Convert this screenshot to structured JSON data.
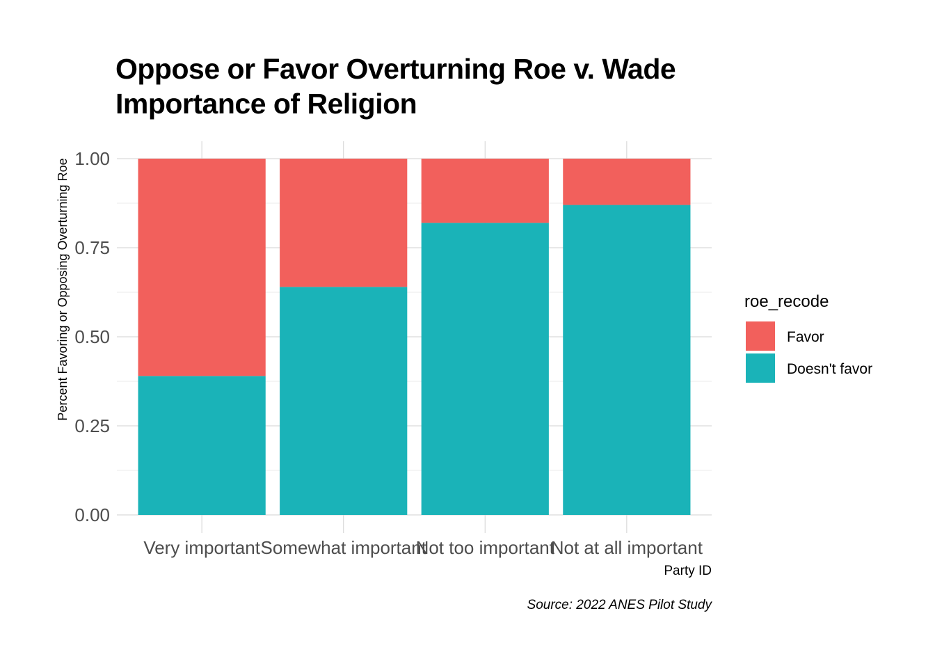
{
  "chart_data": {
    "type": "bar",
    "stacked": true,
    "title": "Oppose or Favor Overturning Roe v. Wade",
    "subtitle": "Importance of Religion",
    "xlabel": "Party ID",
    "ylabel": "Percent Favoring or Opposing Overturning Roe",
    "caption": "Source: 2022 ANES Pilot Study",
    "categories": [
      "Very important",
      "Somewhat important",
      "Not too important",
      "Not at all important"
    ],
    "series": [
      {
        "name": "Doesn't favor",
        "color": "#1ab3b8",
        "values": [
          0.39,
          0.64,
          0.82,
          0.87
        ]
      },
      {
        "name": "Favor",
        "color": "#f2605c",
        "values": [
          0.61,
          0.36,
          0.18,
          0.13
        ]
      }
    ],
    "ylim": [
      0,
      1
    ],
    "yticks": [
      0,
      0.25,
      0.5,
      0.75,
      1
    ],
    "ytick_labels": [
      "0.00",
      "0.25",
      "0.50",
      "0.75",
      "1.00"
    ],
    "grid": true,
    "legend": {
      "title": "roe_recode",
      "position": "right",
      "entries": [
        {
          "label": "Favor",
          "color": "#f2605c"
        },
        {
          "label": "Doesn't favor",
          "color": "#1ab3b8"
        }
      ]
    }
  }
}
